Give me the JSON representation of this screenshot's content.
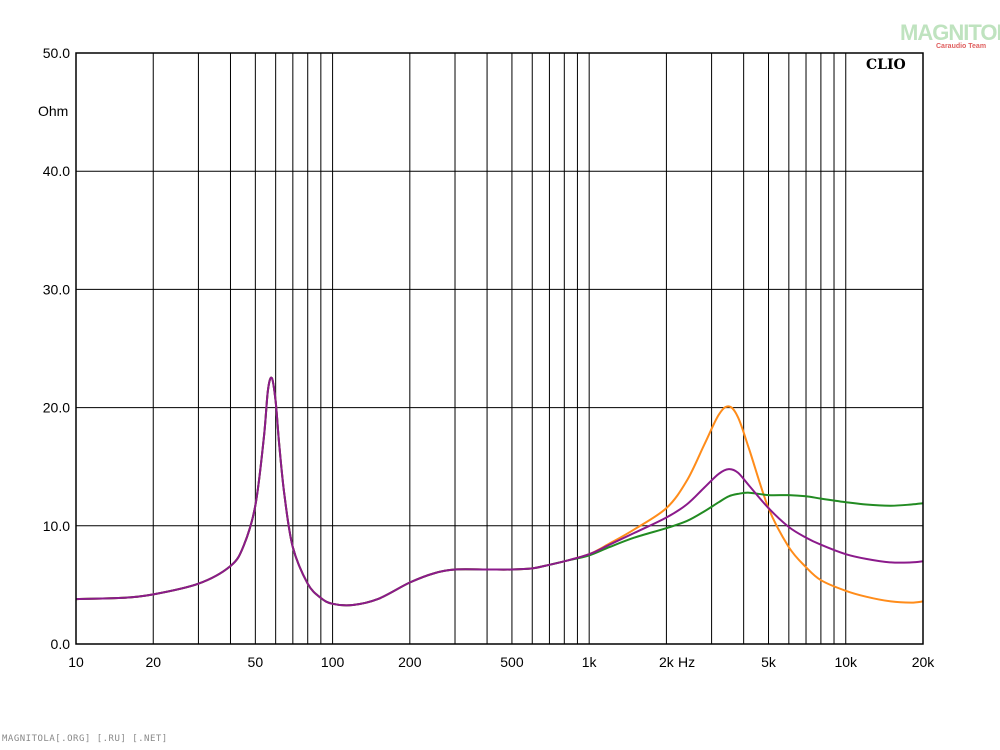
{
  "chart_data": {
    "type": "line",
    "x_scale": "log",
    "xlim": [
      10,
      20000
    ],
    "ylim": [
      0,
      50
    ],
    "grid": true,
    "y_unit": "Ohm",
    "x_unit": "Hz",
    "brand_label": "CLIO",
    "y_ticks": [
      "0.0",
      "10.0",
      "20.0",
      "30.0",
      "40.0",
      "50.0"
    ],
    "y_tick_values": [
      0,
      10,
      20,
      30,
      40,
      50
    ],
    "x_ticks": [
      "10",
      "20",
      "50",
      "100",
      "200",
      "500",
      "1k",
      "2k",
      "5k",
      "10k",
      "20k"
    ],
    "x_tick_values": [
      10,
      20,
      50,
      100,
      200,
      500,
      1000,
      2000,
      5000,
      10000,
      20000
    ],
    "series": [
      {
        "color": "#ff8c1a",
        "x": [
          10,
          15,
          20,
          30,
          40,
          45,
          50,
          54,
          56,
          58,
          60,
          62,
          65,
          70,
          80,
          90,
          100,
          120,
          150,
          200,
          250,
          300,
          400,
          500,
          600,
          700,
          800,
          1000,
          1200,
          1500,
          2000,
          2400,
          2800,
          3200,
          3500,
          3800,
          4200,
          5000,
          6000,
          7000,
          8000,
          10000,
          12000,
          15000,
          18000,
          20000
        ],
        "y": [
          3.8,
          3.9,
          4.2,
          5.1,
          6.6,
          8.3,
          11.7,
          17.5,
          21.5,
          22.5,
          20.5,
          16.8,
          12.5,
          8.2,
          5.1,
          3.9,
          3.4,
          3.3,
          3.8,
          5.2,
          6.0,
          6.3,
          6.3,
          6.3,
          6.4,
          6.7,
          7.0,
          7.6,
          8.5,
          9.7,
          11.5,
          13.8,
          16.8,
          19.4,
          20.1,
          19.2,
          16.5,
          11.5,
          8.2,
          6.5,
          5.4,
          4.5,
          4.0,
          3.6,
          3.5,
          3.6
        ]
      },
      {
        "color": "#228b22",
        "x": [
          10,
          15,
          20,
          30,
          40,
          45,
          50,
          54,
          56,
          58,
          60,
          62,
          65,
          70,
          80,
          90,
          100,
          120,
          150,
          200,
          250,
          300,
          400,
          500,
          600,
          700,
          800,
          1000,
          1200,
          1500,
          2000,
          2400,
          2800,
          3200,
          3500,
          3800,
          4200,
          5000,
          6000,
          7000,
          8000,
          10000,
          12000,
          15000,
          18000,
          20000
        ],
        "y": [
          3.8,
          3.9,
          4.2,
          5.1,
          6.6,
          8.3,
          11.7,
          17.5,
          21.5,
          22.5,
          20.5,
          16.8,
          12.5,
          8.2,
          5.1,
          3.9,
          3.4,
          3.3,
          3.8,
          5.2,
          6.0,
          6.3,
          6.3,
          6.3,
          6.4,
          6.7,
          7.0,
          7.5,
          8.2,
          9.0,
          9.8,
          10.4,
          11.2,
          12.0,
          12.5,
          12.7,
          12.8,
          12.6,
          12.6,
          12.5,
          12.3,
          12.0,
          11.8,
          11.7,
          11.8,
          11.9
        ]
      },
      {
        "color": "#8b1a8b",
        "x": [
          10,
          15,
          20,
          30,
          40,
          45,
          50,
          54,
          56,
          58,
          60,
          62,
          65,
          70,
          80,
          90,
          100,
          120,
          150,
          200,
          250,
          300,
          400,
          500,
          600,
          700,
          800,
          1000,
          1200,
          1500,
          2000,
          2400,
          2800,
          3200,
          3500,
          3800,
          4200,
          5000,
          6000,
          7000,
          8000,
          10000,
          12000,
          15000,
          18000,
          20000
        ],
        "y": [
          3.8,
          3.9,
          4.2,
          5.1,
          6.6,
          8.3,
          11.7,
          17.5,
          21.5,
          22.5,
          20.5,
          16.8,
          12.5,
          8.2,
          5.1,
          3.9,
          3.4,
          3.3,
          3.8,
          5.2,
          6.0,
          6.3,
          6.3,
          6.3,
          6.4,
          6.7,
          7.0,
          7.6,
          8.4,
          9.4,
          10.7,
          11.8,
          13.2,
          14.4,
          14.8,
          14.5,
          13.4,
          11.5,
          9.9,
          9.0,
          8.4,
          7.6,
          7.2,
          6.9,
          6.9,
          7.0
        ]
      }
    ]
  },
  "watermark": {
    "name": "MAGNITOLA",
    "sub": "Caraudio Team"
  },
  "footer_text": "MAGNITOLA[.ORG] [.RU] [.NET]"
}
